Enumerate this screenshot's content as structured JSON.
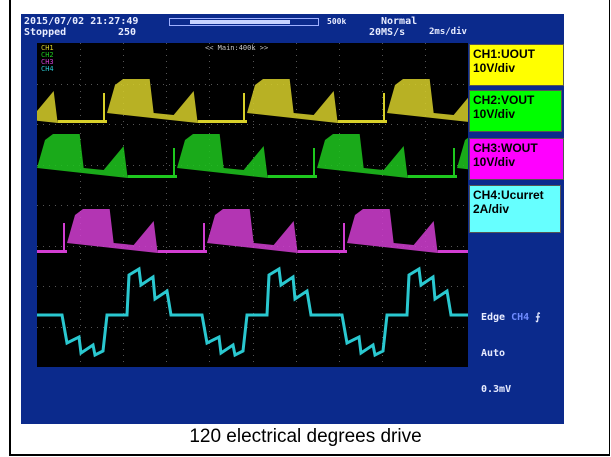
{
  "scope": {
    "timestamp": "2015/07/02 21:27:49",
    "run_state": "Stopped",
    "trigger_pos": "250",
    "record_length": "500k",
    "acq_mode": "Normal",
    "sample_rate": "20MS/s",
    "time_div": "2ms/div",
    "zoom_label": "<< Main:400k >>",
    "legend": [
      "CH1",
      "CH2",
      "CH3",
      "CH4"
    ],
    "trigger": {
      "type": "Edge",
      "source": "CH4",
      "mode": "Auto",
      "level": "0.3mV"
    }
  },
  "channels": [
    {
      "label": "CH1:UOUT",
      "scale": "10V/div",
      "color": "#d8d02a",
      "box_color": "#ffff00"
    },
    {
      "label": "CH2:VOUT",
      "scale": "10V/div",
      "color": "#1ec81e",
      "box_color": "#00ff00"
    },
    {
      "label": "CH3:WOUT",
      "scale": "10V/div",
      "color": "#d23ed2",
      "box_color": "#ff00ff"
    },
    {
      "label": "CH4:Ucurret",
      "scale": "2A/div",
      "color": "#2ac8d0",
      "box_color": "#66ffff"
    }
  ],
  "caption": "120 electrical degrees drive"
}
